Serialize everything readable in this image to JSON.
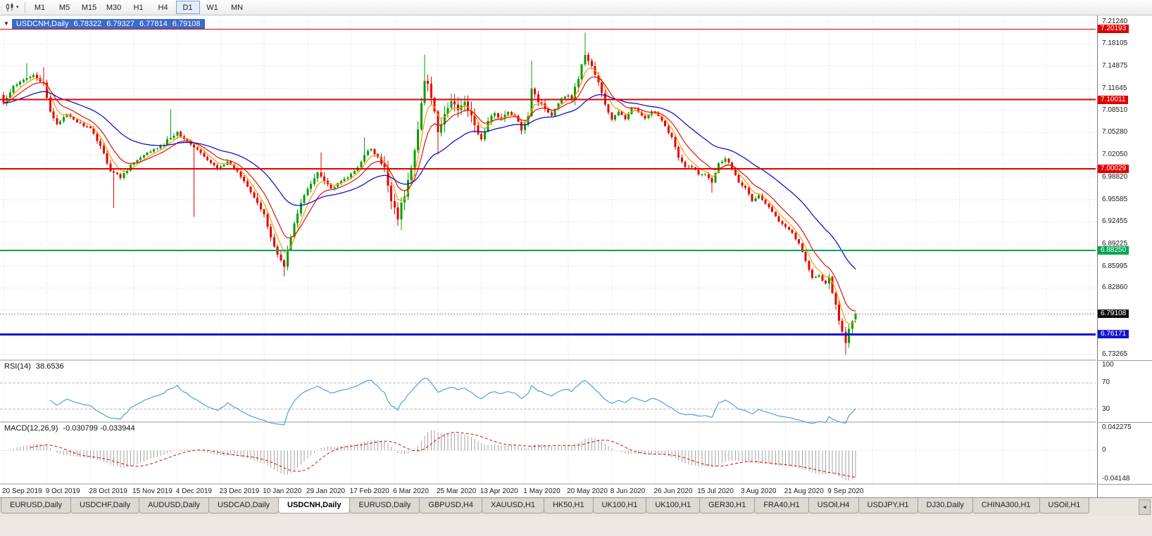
{
  "toolbar": {
    "chart_type_button": {
      "caret": "▾"
    },
    "timeframes": [
      {
        "label": "M1",
        "active": false
      },
      {
        "label": "M5",
        "active": false
      },
      {
        "label": "M15",
        "active": false
      },
      {
        "label": "M30",
        "active": false
      },
      {
        "label": "H1",
        "active": false
      },
      {
        "label": "H4",
        "active": false
      },
      {
        "label": "D1",
        "active": true
      },
      {
        "label": "W1",
        "active": false
      },
      {
        "label": "MN",
        "active": false
      }
    ]
  },
  "chart": {
    "title": {
      "dropdown_icon": "▼",
      "symbol": "USDCNH,Daily",
      "open": "6.78322",
      "high": "6.79327",
      "low": "6.77814",
      "close": "6.79108"
    }
  },
  "panes": {
    "rsi_label": "RSI(14)",
    "rsi_value": "38.6536",
    "macd_label": "MACD(12,26,9)",
    "macd_values": "-0.030799 -0.033944"
  },
  "tab_scroll_icon": "◄",
  "tabs": [
    {
      "label": "EURUSD,Daily",
      "active": false
    },
    {
      "label": "USDCHF,Daily",
      "active": false
    },
    {
      "label": "AUDUSD,Daily",
      "active": false
    },
    {
      "label": "USDCAD,Daily",
      "active": false
    },
    {
      "label": "USDCNH,Daily",
      "active": true
    },
    {
      "label": "EURUSD,Daily",
      "active": false
    },
    {
      "label": "GBPUSD,H4",
      "active": false
    },
    {
      "label": "XAUUSD,H1",
      "active": false
    },
    {
      "label": "HK50,H1",
      "active": false
    },
    {
      "label": "UK100,H1",
      "active": false
    },
    {
      "label": "UK100,H1",
      "active": false
    },
    {
      "label": "GER30,H1",
      "active": false
    },
    {
      "label": "FRA40,H1",
      "active": false
    },
    {
      "label": "USOil,H4",
      "active": false
    },
    {
      "label": "USDJPY,H1",
      "active": false
    },
    {
      "label": "DJ30,Daily",
      "active": false
    },
    {
      "label": "CHINA300,H1",
      "active": false
    },
    {
      "label": "USOil,H1",
      "active": false
    }
  ],
  "chart_data": {
    "type": "candlestick",
    "symbol": "USDCNH",
    "timeframe": "Daily",
    "bars": 256,
    "seed": 42,
    "ohlc_last": {
      "open": 6.78322,
      "high": 6.79327,
      "low": 6.77814,
      "close": 6.79108
    },
    "x_axis": {
      "bars_per_label": 13,
      "labels": [
        "20 Sep 2019",
        "9 Oct 2019",
        "28 Oct 2019",
        "15 Nov 2019",
        "4 Dec 2019",
        "23 Dec 2019",
        "10 Jan 2020",
        "29 Jan 2020",
        "17 Feb 2020",
        "6 Mar 2020",
        "25 Mar 2020",
        "13 Apr 2020",
        "1 May 2020",
        "20 May 2020",
        "8 Jun 2020",
        "26 Jun 2020",
        "15 Jul 2020",
        "3 Aug 2020",
        "21 Aug 2020",
        "9 Sep 2020"
      ]
    },
    "y_axis": {
      "range": [
        6.7245,
        7.2215
      ],
      "tick_labels": [
        {
          "text": "7.21240",
          "price": 7.2124
        },
        {
          "text": "7.18105",
          "price": 7.18105
        },
        {
          "text": "7.14875",
          "price": 7.14875
        },
        {
          "text": "7.11645",
          "price": 7.11645
        },
        {
          "text": "7.08510",
          "price": 7.0851
        },
        {
          "text": "7.05280",
          "price": 7.0528
        },
        {
          "text": "7.02050",
          "price": 7.0205
        },
        {
          "text": "6.98820",
          "price": 6.9882
        },
        {
          "text": "6.95585",
          "price": 6.95585
        },
        {
          "text": "6.92455",
          "price": 6.92455
        },
        {
          "text": "6.89225",
          "price": 6.89225
        },
        {
          "text": "6.85995",
          "price": 6.85995
        },
        {
          "text": "6.82860",
          "price": 6.8286
        },
        {
          "text": "6.73265",
          "price": 6.73265
        }
      ],
      "grid_only": [
        6.7963,
        6.76395
      ]
    },
    "up_color": "#00A000",
    "down_color": "#E80000",
    "close_waypoints": [
      [
        0,
        7.095
      ],
      [
        3,
        7.118
      ],
      [
        6,
        7.128
      ],
      [
        9,
        7.138
      ],
      [
        12,
        7.122
      ],
      [
        14,
        7.082
      ],
      [
        16,
        7.066
      ],
      [
        19,
        7.078
      ],
      [
        22,
        7.068
      ],
      [
        26,
        7.058
      ],
      [
        29,
        7.034
      ],
      [
        32,
        6.998
      ],
      [
        35,
        6.988
      ],
      [
        38,
        7.006
      ],
      [
        41,
        7.016
      ],
      [
        44,
        7.026
      ],
      [
        47,
        7.032
      ],
      [
        50,
        7.046
      ],
      [
        52,
        7.054
      ],
      [
        55,
        7.04
      ],
      [
        58,
        7.028
      ],
      [
        61,
        7.012
      ],
      [
        64,
        7.002
      ],
      [
        67,
        7.01
      ],
      [
        70,
        6.996
      ],
      [
        73,
        6.976
      ],
      [
        76,
        6.952
      ],
      [
        78,
        6.932
      ],
      [
        80,
        6.902
      ],
      [
        82,
        6.876
      ],
      [
        84,
        6.862
      ],
      [
        86,
        6.902
      ],
      [
        88,
        6.938
      ],
      [
        90,
        6.962
      ],
      [
        92,
        6.978
      ],
      [
        94,
        6.996
      ],
      [
        96,
        6.986
      ],
      [
        98,
        6.972
      ],
      [
        100,
        6.978
      ],
      [
        102,
        6.986
      ],
      [
        104,
        6.992
      ],
      [
        106,
        7.002
      ],
      [
        108,
        7.022
      ],
      [
        110,
        7.028
      ],
      [
        112,
        7.016
      ],
      [
        114,
        6.998
      ],
      [
        116,
        6.958
      ],
      [
        118,
        6.932
      ],
      [
        120,
        6.962
      ],
      [
        122,
        7.002
      ],
      [
        124,
        7.062
      ],
      [
        126,
        7.128
      ],
      [
        128,
        7.108
      ],
      [
        130,
        7.048
      ],
      [
        132,
        7.078
      ],
      [
        134,
        7.098
      ],
      [
        136,
        7.088
      ],
      [
        138,
        7.102
      ],
      [
        140,
        7.072
      ],
      [
        143,
        7.042
      ],
      [
        145,
        7.068
      ],
      [
        147,
        7.082
      ],
      [
        149,
        7.072
      ],
      [
        151,
        7.082
      ],
      [
        153,
        7.076
      ],
      [
        155,
        7.058
      ],
      [
        157,
        7.078
      ],
      [
        158,
        7.118
      ],
      [
        160,
        7.098
      ],
      [
        162,
        7.088
      ],
      [
        164,
        7.078
      ],
      [
        166,
        7.096
      ],
      [
        168,
        7.106
      ],
      [
        170,
        7.102
      ],
      [
        172,
        7.132
      ],
      [
        174,
        7.166
      ],
      [
        176,
        7.148
      ],
      [
        178,
        7.124
      ],
      [
        180,
        7.092
      ],
      [
        182,
        7.072
      ],
      [
        184,
        7.082
      ],
      [
        186,
        7.072
      ],
      [
        188,
        7.09
      ],
      [
        190,
        7.082
      ],
      [
        192,
        7.072
      ],
      [
        194,
        7.082
      ],
      [
        196,
        7.078
      ],
      [
        198,
        7.062
      ],
      [
        200,
        7.046
      ],
      [
        202,
        7.016
      ],
      [
        204,
        7.002
      ],
      [
        206,
        7.004
      ],
      [
        208,
        6.992
      ],
      [
        210,
        6.994
      ],
      [
        212,
        6.982
      ],
      [
        214,
        7.008
      ],
      [
        216,
        7.016
      ],
      [
        218,
        7.002
      ],
      [
        220,
        6.982
      ],
      [
        222,
        6.972
      ],
      [
        224,
        6.954
      ],
      [
        226,
        6.962
      ],
      [
        228,
        6.95
      ],
      [
        230,
        6.938
      ],
      [
        232,
        6.926
      ],
      [
        234,
        6.918
      ],
      [
        236,
        6.908
      ],
      [
        238,
        6.892
      ],
      [
        240,
        6.868
      ],
      [
        242,
        6.844
      ],
      [
        244,
        6.846
      ],
      [
        246,
        6.834
      ],
      [
        247,
        6.842
      ],
      [
        248,
        6.822
      ],
      [
        249,
        6.802
      ],
      [
        250,
        6.784
      ],
      [
        251,
        6.764
      ],
      [
        252,
        6.752
      ],
      [
        253,
        6.766
      ],
      [
        254,
        6.78
      ],
      [
        255,
        6.79108
      ]
    ],
    "forced_wicks": [
      {
        "i": 7,
        "h": 7.153
      },
      {
        "i": 12,
        "h": 7.147
      },
      {
        "i": 33,
        "l": 6.944
      },
      {
        "i": 50,
        "h": 7.086
      },
      {
        "i": 57,
        "l": 6.931
      },
      {
        "i": 84,
        "l": 6.845
      },
      {
        "i": 95,
        "h": 7.024
      },
      {
        "i": 108,
        "h": 7.046
      },
      {
        "i": 119,
        "l": 6.912
      },
      {
        "i": 126,
        "h": 7.165
      },
      {
        "i": 130,
        "l": 7.021
      },
      {
        "i": 158,
        "h": 7.156
      },
      {
        "i": 174,
        "h": 7.1964
      },
      {
        "i": 212,
        "l": 6.966
      },
      {
        "i": 252,
        "l": 6.7325
      }
    ],
    "volatility": {
      "default": 0.0032,
      "zones": [
        {
          "from": 0,
          "to": 16,
          "amp": 0.0055
        },
        {
          "from": 28,
          "to": 37,
          "amp": 0.005
        },
        {
          "from": 48,
          "to": 53,
          "amp": 0.005
        },
        {
          "from": 76,
          "to": 97,
          "amp": 0.0065
        },
        {
          "from": 106,
          "to": 113,
          "amp": 0.005
        },
        {
          "from": 114,
          "to": 141,
          "amp": 0.0125
        },
        {
          "from": 142,
          "to": 150,
          "amp": 0.006
        },
        {
          "from": 155,
          "to": 162,
          "amp": 0.007
        },
        {
          "from": 169,
          "to": 180,
          "amp": 0.0075
        },
        {
          "from": 199,
          "to": 205,
          "amp": 0.005
        },
        {
          "from": 246,
          "to": 255,
          "amp": 0.008
        }
      ]
    },
    "moving_averages": [
      {
        "period": 5,
        "color": "#FF9900"
      },
      {
        "period": 10,
        "color": "#DC1414"
      },
      {
        "period": 30,
        "color": "#0000CC"
      }
    ],
    "horizontal_lines": [
      {
        "price": 7.20193,
        "label": "7.20193",
        "color": "#E00000",
        "width": 1
      },
      {
        "price": 7.10011,
        "label": "7.10011",
        "color": "#E00000",
        "width": 2
      },
      {
        "price": 7.00029,
        "label": "7.00029",
        "color": "#E00000",
        "width": 2
      },
      {
        "price": 6.8825,
        "label": "6.88250",
        "color": "#00A551",
        "width": 2
      },
      {
        "price": 6.76171,
        "label": "6.76171",
        "color": "#1414D2",
        "width": 3
      }
    ],
    "current_price": {
      "value": 6.79108,
      "label": "6.79108",
      "tag_color": "#101010"
    },
    "rsi": {
      "period": 14,
      "color": "#4F9FE0",
      "display_value": "38.6536",
      "levels": [
        70,
        30
      ],
      "axis_labels": [
        "100",
        "70",
        "30"
      ],
      "render_range": [
        10,
        105
      ]
    },
    "macd": {
      "fast": 12,
      "slow": 26,
      "signal": 9,
      "hist_color": "#A3A3A3",
      "signal_color": "#E00000",
      "display_values": "-0.030799 -0.033944",
      "axis_labels": [
        "0.042275",
        "0",
        "-0.04148"
      ],
      "render_range": [
        -0.0525,
        0.0445
      ]
    }
  }
}
